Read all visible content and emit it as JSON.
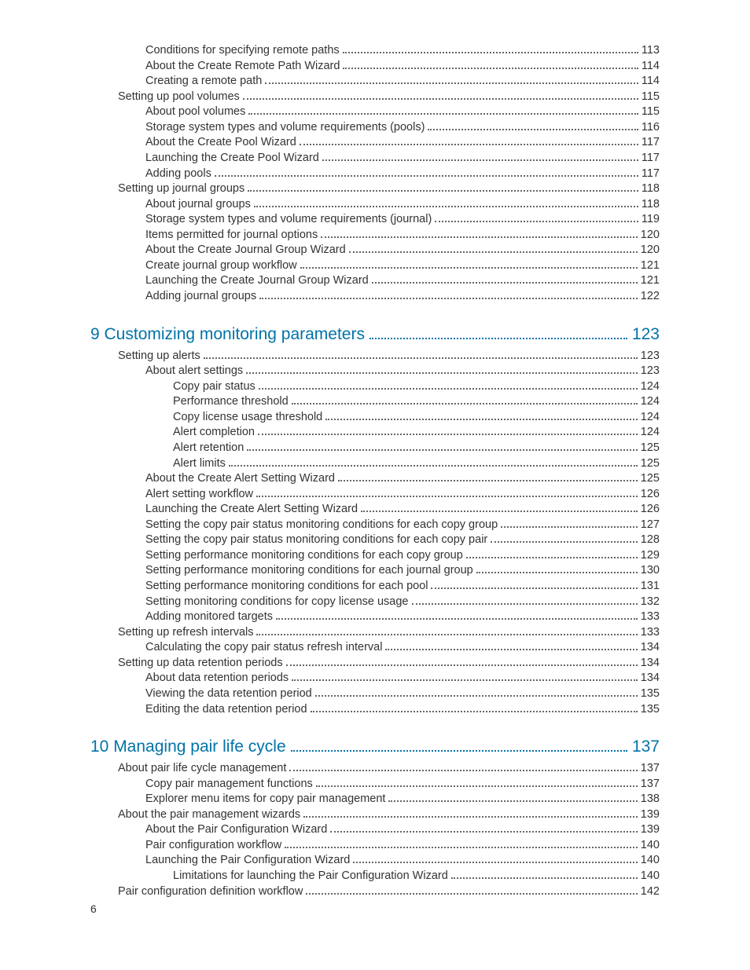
{
  "colors": {
    "chapter_color": "#0073a8",
    "text_color": "#333333",
    "dots_color": "#666666",
    "background": "#ffffff"
  },
  "typography": {
    "body_fontsize": 14.5,
    "chapter_fontsize": 21,
    "line_height": 1.35
  },
  "page_number": "6",
  "entries": [
    {
      "type": "item",
      "indent": 2,
      "label": "Conditions for specifying remote paths",
      "page": "113"
    },
    {
      "type": "item",
      "indent": 2,
      "label": "About the Create Remote Path Wizard",
      "page": "114"
    },
    {
      "type": "item",
      "indent": 2,
      "label": "Creating a remote path",
      "page": "114"
    },
    {
      "type": "item",
      "indent": 1,
      "label": "Setting up pool volumes",
      "page": "115"
    },
    {
      "type": "item",
      "indent": 2,
      "label": "About pool volumes",
      "page": "115"
    },
    {
      "type": "item",
      "indent": 2,
      "label": "Storage system types and volume requirements (pools)",
      "page": "116"
    },
    {
      "type": "item",
      "indent": 2,
      "label": "About the Create Pool Wizard",
      "page": "117"
    },
    {
      "type": "item",
      "indent": 2,
      "label": "Launching the Create Pool Wizard",
      "page": "117"
    },
    {
      "type": "item",
      "indent": 2,
      "label": "Adding pools",
      "page": "117"
    },
    {
      "type": "item",
      "indent": 1,
      "label": "Setting up journal groups",
      "page": "118"
    },
    {
      "type": "item",
      "indent": 2,
      "label": "About journal groups",
      "page": "118"
    },
    {
      "type": "item",
      "indent": 2,
      "label": "Storage system types and volume requirements (journal)",
      "page": "119"
    },
    {
      "type": "item",
      "indent": 2,
      "label": "Items permitted for journal options",
      "page": "120"
    },
    {
      "type": "item",
      "indent": 2,
      "label": "About the Create Journal Group Wizard",
      "page": "120"
    },
    {
      "type": "item",
      "indent": 2,
      "label": "Create journal group workflow",
      "page": "121"
    },
    {
      "type": "item",
      "indent": 2,
      "label": "Launching the Create Journal Group Wizard",
      "page": "121"
    },
    {
      "type": "item",
      "indent": 2,
      "label": "Adding journal groups",
      "page": "122"
    },
    {
      "type": "chapter",
      "indent": 0,
      "label": "9 Customizing monitoring parameters",
      "page": "123"
    },
    {
      "type": "item",
      "indent": 1,
      "label": "Setting up alerts",
      "page": "123"
    },
    {
      "type": "item",
      "indent": 2,
      "label": "About alert settings",
      "page": "123"
    },
    {
      "type": "item",
      "indent": 3,
      "label": "Copy pair status",
      "page": "124"
    },
    {
      "type": "item",
      "indent": 3,
      "label": "Performance threshold",
      "page": "124"
    },
    {
      "type": "item",
      "indent": 3,
      "label": "Copy license usage threshold",
      "page": "124"
    },
    {
      "type": "item",
      "indent": 3,
      "label": "Alert completion",
      "page": "124"
    },
    {
      "type": "item",
      "indent": 3,
      "label": "Alert retention",
      "page": "125"
    },
    {
      "type": "item",
      "indent": 3,
      "label": "Alert limits",
      "page": "125"
    },
    {
      "type": "item",
      "indent": 2,
      "label": "About the Create Alert Setting Wizard",
      "page": "125"
    },
    {
      "type": "item",
      "indent": 2,
      "label": "Alert setting workflow",
      "page": "126"
    },
    {
      "type": "item",
      "indent": 2,
      "label": "Launching the Create Alert Setting Wizard",
      "page": "126"
    },
    {
      "type": "item",
      "indent": 2,
      "label": "Setting the copy pair status monitoring conditions for each copy group",
      "page": "127"
    },
    {
      "type": "item",
      "indent": 2,
      "label": "Setting the copy pair status monitoring conditions for each copy pair",
      "page": "128"
    },
    {
      "type": "item",
      "indent": 2,
      "label": "Setting performance monitoring conditions for each copy group",
      "page": "129"
    },
    {
      "type": "item",
      "indent": 2,
      "label": "Setting performance monitoring conditions for each journal group",
      "page": "130"
    },
    {
      "type": "item",
      "indent": 2,
      "label": "Setting performance monitoring conditions for each pool",
      "page": "131"
    },
    {
      "type": "item",
      "indent": 2,
      "label": "Setting monitoring conditions for copy license usage",
      "page": "132"
    },
    {
      "type": "item",
      "indent": 2,
      "label": "Adding monitored targets",
      "page": "133"
    },
    {
      "type": "item",
      "indent": 1,
      "label": "Setting up refresh intervals",
      "page": "133"
    },
    {
      "type": "item",
      "indent": 2,
      "label": "Calculating the copy pair status refresh interval",
      "page": "134"
    },
    {
      "type": "item",
      "indent": 1,
      "label": "Setting up data retention periods",
      "page": "134"
    },
    {
      "type": "item",
      "indent": 2,
      "label": "About data retention periods",
      "page": "134"
    },
    {
      "type": "item",
      "indent": 2,
      "label": "Viewing the data retention period",
      "page": "135"
    },
    {
      "type": "item",
      "indent": 2,
      "label": "Editing the data retention period",
      "page": "135"
    },
    {
      "type": "chapter",
      "indent": 0,
      "label": "10 Managing pair life cycle",
      "page": "137"
    },
    {
      "type": "item",
      "indent": 1,
      "label": "About pair life cycle management",
      "page": "137"
    },
    {
      "type": "item",
      "indent": 2,
      "label": "Copy pair management functions",
      "page": "137"
    },
    {
      "type": "item",
      "indent": 2,
      "label": "Explorer menu items for copy pair management",
      "page": "138"
    },
    {
      "type": "item",
      "indent": 1,
      "label": "About the pair management wizards",
      "page": "139"
    },
    {
      "type": "item",
      "indent": 2,
      "label": "About the Pair Configuration Wizard",
      "page": "139"
    },
    {
      "type": "item",
      "indent": 2,
      "label": "Pair configuration workflow",
      "page": "140"
    },
    {
      "type": "item",
      "indent": 2,
      "label": "Launching the Pair Configuration Wizard",
      "page": "140"
    },
    {
      "type": "item",
      "indent": 3,
      "label": "Limitations for launching the Pair Configuration Wizard",
      "page": "140"
    },
    {
      "type": "item",
      "indent": 1,
      "label": "Pair configuration definition workflow",
      "page": "142"
    }
  ]
}
